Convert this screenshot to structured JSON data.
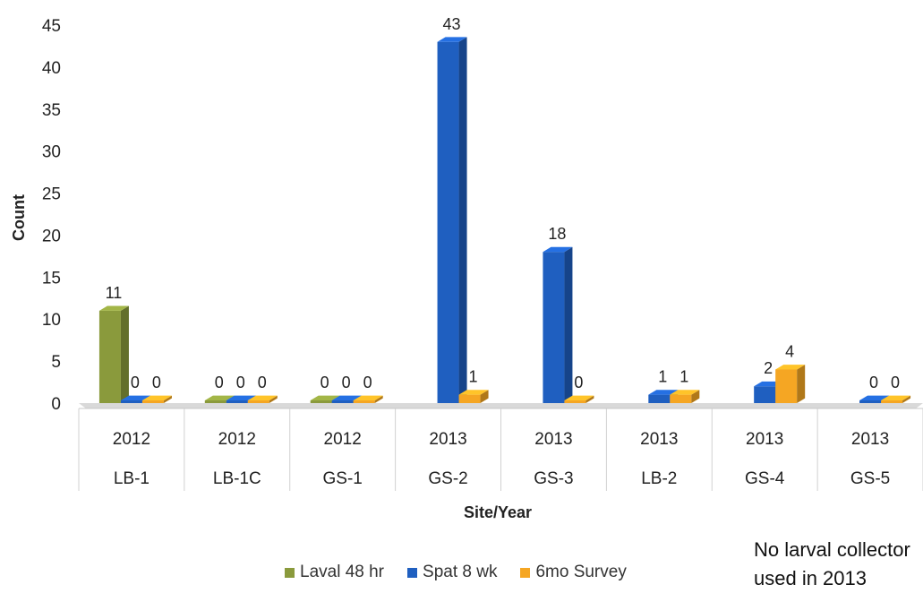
{
  "chart_data": {
    "type": "bar",
    "title": "",
    "xlabel": "Site/Year",
    "ylabel": "Count",
    "ylim": [
      0,
      45
    ],
    "yticks": [
      0,
      5,
      10,
      15,
      20,
      25,
      30,
      35,
      40,
      45
    ],
    "categories": [
      {
        "year": "2012",
        "site": "LB-1"
      },
      {
        "year": "2012",
        "site": "LB-1C"
      },
      {
        "year": "2012",
        "site": "GS-1"
      },
      {
        "year": "2013",
        "site": "GS-2"
      },
      {
        "year": "2013",
        "site": "GS-3"
      },
      {
        "year": "2013",
        "site": "LB-2"
      },
      {
        "year": "2013",
        "site": "GS-4"
      },
      {
        "year": "2013",
        "site": "GS-5"
      }
    ],
    "series": [
      {
        "name": "Laval 48 hr",
        "color": "#8a9a3c",
        "values": [
          11,
          0,
          0,
          null,
          null,
          null,
          null,
          null
        ]
      },
      {
        "name": "Spat 8 wk",
        "color": "#1f5fc0",
        "values": [
          0,
          0,
          0,
          43,
          18,
          1,
          2,
          0
        ]
      },
      {
        "name": "6mo Survey",
        "color": "#f5a623",
        "values": [
          0,
          0,
          0,
          1,
          0,
          1,
          4,
          0
        ]
      }
    ],
    "legend_position": "bottom",
    "grid": false
  },
  "note": {
    "line1": "No larval collector",
    "line2": "used in 2013"
  }
}
